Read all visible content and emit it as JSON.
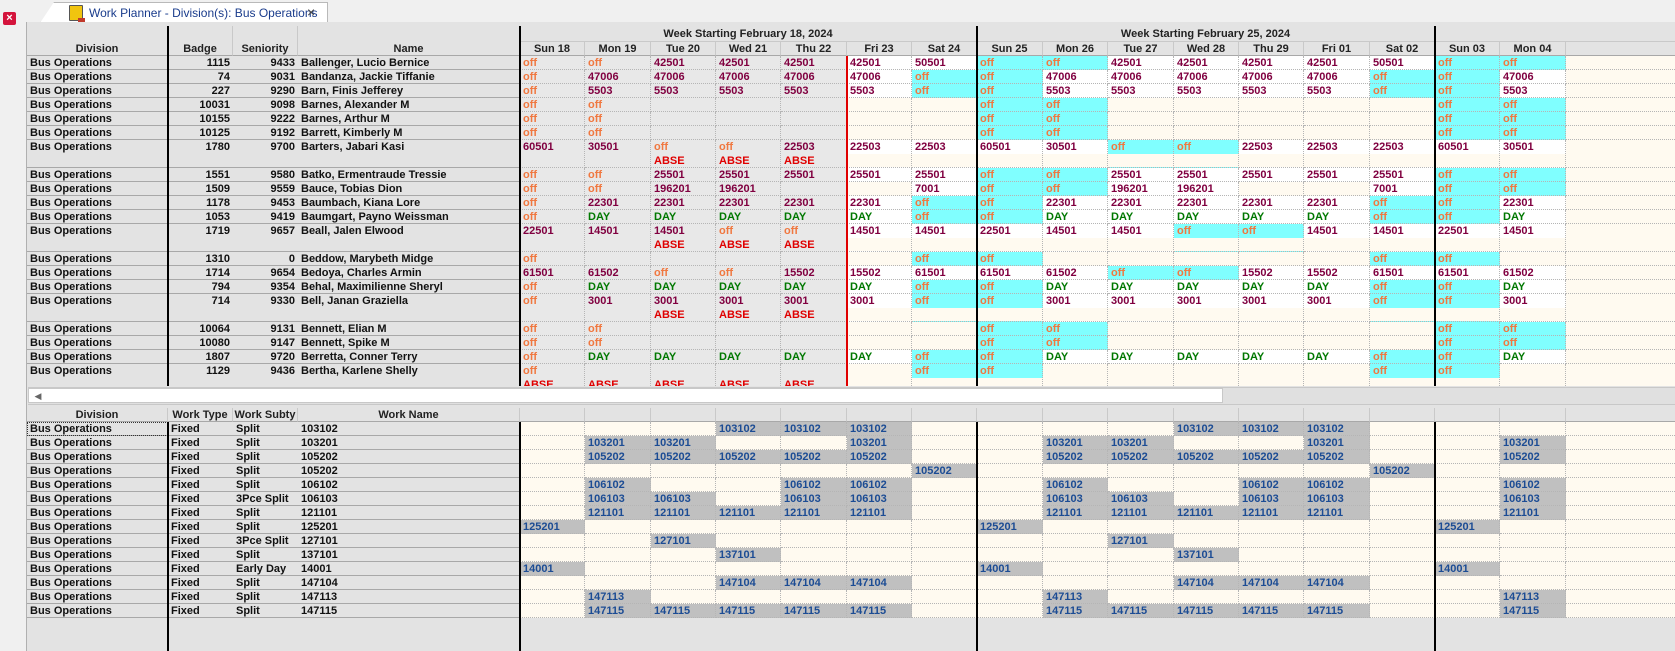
{
  "window": {
    "close_icon": "close-x-icon",
    "tab": {
      "icon": "planner-notebook-icon",
      "title": "Work Planner - Division(s): Bus Operations",
      "close_glyph": "×"
    }
  },
  "colors": {
    "off": "#f07840",
    "code": "#800040",
    "day": "#007800",
    "abse": "#e00000",
    "work_blue": "#1c4c94",
    "highlight_cyan": "#80ffff",
    "assigned_gray": "#c0c0c0",
    "today_line": "#e00000"
  },
  "top_grid": {
    "fixed_headers": [
      "Division",
      "Badge",
      "Seniority",
      "Name"
    ],
    "weeks": [
      {
        "label": "Week Starting February 18, 2024"
      },
      {
        "label": "Week Starting February 25, 2024"
      },
      {
        "label": ""
      }
    ],
    "days": [
      "Sun 18",
      "Mon 19",
      "Tue 20",
      "Wed 21",
      "Thu 22",
      "Fri 23",
      "Sat 24",
      "Sun 25",
      "Mon 26",
      "Tue 27",
      "Wed 28",
      "Thu 29",
      "Fri 01",
      "Sat 02",
      "Sun 03",
      "Mon 04"
    ],
    "rows": [
      {
        "division": "Bus Operations",
        "badge": "1115",
        "seniority": "9433",
        "name": "Ballenger, Lucio Bernice",
        "cells": [
          "off",
          "off",
          "42501",
          "42501",
          "42501",
          "42501",
          "50501",
          "off",
          "off",
          "42501",
          "42501",
          "42501",
          "42501",
          "50501",
          "off",
          "off"
        ],
        "abse": []
      },
      {
        "division": "Bus Operations",
        "badge": "74",
        "seniority": "9031",
        "name": "Bandanza, Jackie Tiffanie",
        "cells": [
          "off",
          "47006",
          "47006",
          "47006",
          "47006",
          "47006",
          "off",
          "off",
          "47006",
          "47006",
          "47006",
          "47006",
          "47006",
          "off",
          "off",
          "47006"
        ],
        "abse": []
      },
      {
        "division": "Bus Operations",
        "badge": "227",
        "seniority": "9290",
        "name": "Barn, Finis Jefferey",
        "cells": [
          "off",
          "5503",
          "5503",
          "5503",
          "5503",
          "5503",
          "off",
          "off",
          "5503",
          "5503",
          "5503",
          "5503",
          "5503",
          "off",
          "off",
          "5503"
        ],
        "abse": []
      },
      {
        "division": "Bus Operations",
        "badge": "10031",
        "seniority": "9098",
        "name": "Barnes, Alexander M",
        "cells": [
          "off",
          "off",
          "",
          "",
          "",
          "",
          "",
          "off",
          "off",
          "",
          "",
          "",
          "",
          "",
          "off",
          "off"
        ],
        "abse": []
      },
      {
        "division": "Bus Operations",
        "badge": "10155",
        "seniority": "9222",
        "name": "Barnes, Arthur M",
        "cells": [
          "off",
          "off",
          "",
          "",
          "",
          "",
          "",
          "off",
          "off",
          "",
          "",
          "",
          "",
          "",
          "off",
          "off"
        ],
        "abse": []
      },
      {
        "division": "Bus Operations",
        "badge": "10125",
        "seniority": "9192",
        "name": "Barrett, Kimberly M",
        "cells": [
          "off",
          "off",
          "",
          "",
          "",
          "",
          "",
          "off",
          "off",
          "",
          "",
          "",
          "",
          "",
          "off",
          "off"
        ],
        "abse": []
      },
      {
        "division": "Bus Operations",
        "badge": "1780",
        "seniority": "9700",
        "name": "Barters, Jabari Kasi",
        "cells": [
          "60501",
          "30501",
          "off",
          "off",
          "22503",
          "22503",
          "22503",
          "60501",
          "30501",
          "off",
          "off",
          "22503",
          "22503",
          "22503",
          "60501",
          "30501"
        ],
        "abse": [
          2,
          3,
          4
        ]
      },
      {
        "division": "Bus Operations",
        "badge": "1551",
        "seniority": "9580",
        "name": "Batko, Ermentraude Tressie",
        "cells": [
          "off",
          "off",
          "25501",
          "25501",
          "25501",
          "25501",
          "25501",
          "off",
          "off",
          "25501",
          "25501",
          "25501",
          "25501",
          "25501",
          "off",
          "off"
        ],
        "abse": []
      },
      {
        "division": "Bus Operations",
        "badge": "1509",
        "seniority": "9559",
        "name": "Bauce, Tobias Dion",
        "cells": [
          "off",
          "off",
          "196201",
          "196201",
          "",
          "",
          "7001",
          "off",
          "off",
          "196201",
          "196201",
          "",
          "",
          "7001",
          "off",
          "off"
        ],
        "abse": []
      },
      {
        "division": "Bus Operations",
        "badge": "1178",
        "seniority": "9453",
        "name": "Baumbach, Kiana Lore",
        "cells": [
          "off",
          "22301",
          "22301",
          "22301",
          "22301",
          "22301",
          "off",
          "off",
          "22301",
          "22301",
          "22301",
          "22301",
          "22301",
          "off",
          "off",
          "22301"
        ],
        "abse": []
      },
      {
        "division": "Bus Operations",
        "badge": "1053",
        "seniority": "9419",
        "name": "Baumgart, Payno Weissman",
        "cells": [
          "off",
          "DAY",
          "DAY",
          "DAY",
          "DAY",
          "DAY",
          "off",
          "off",
          "DAY",
          "DAY",
          "DAY",
          "DAY",
          "DAY",
          "off",
          "off",
          "DAY"
        ],
        "abse": []
      },
      {
        "division": "Bus Operations",
        "badge": "1719",
        "seniority": "9657",
        "name": "Beall, Jalen Elwood",
        "cells": [
          "22501",
          "14501",
          "14501",
          "off",
          "off",
          "14501",
          "14501",
          "22501",
          "14501",
          "14501",
          "off",
          "off",
          "14501",
          "14501",
          "22501",
          "14501"
        ],
        "abse": [
          2,
          3,
          4
        ]
      },
      {
        "division": "Bus Operations",
        "badge": "1310",
        "seniority": "0",
        "name": "Beddow, Marybeth Midge",
        "cells": [
          "off",
          "",
          "",
          "",
          "",
          "",
          "off",
          "off",
          "",
          "",
          "",
          "",
          "",
          "off",
          "off",
          ""
        ],
        "abse": []
      },
      {
        "division": "Bus Operations",
        "badge": "1714",
        "seniority": "9654",
        "name": "Bedoya, Charles Armin",
        "cells": [
          "61501",
          "61502",
          "off",
          "off",
          "15502",
          "15502",
          "61501",
          "61501",
          "61502",
          "off",
          "off",
          "15502",
          "15502",
          "61501",
          "61501",
          "61502"
        ],
        "abse": []
      },
      {
        "division": "Bus Operations",
        "badge": "794",
        "seniority": "9354",
        "name": "Behal, Maximilienne Sheryl",
        "cells": [
          "off",
          "DAY",
          "DAY",
          "DAY",
          "DAY",
          "DAY",
          "off",
          "off",
          "DAY",
          "DAY",
          "DAY",
          "DAY",
          "DAY",
          "off",
          "off",
          "DAY"
        ],
        "abse": []
      },
      {
        "division": "Bus Operations",
        "badge": "714",
        "seniority": "9330",
        "name": "Bell, Janan Graziella",
        "cells": [
          "off",
          "3001",
          "3001",
          "3001",
          "3001",
          "3001",
          "off",
          "off",
          "3001",
          "3001",
          "3001",
          "3001",
          "3001",
          "off",
          "off",
          "3001"
        ],
        "abse": [
          2,
          3,
          4
        ]
      },
      {
        "division": "Bus Operations",
        "badge": "10064",
        "seniority": "9131",
        "name": "Bennett, Elian M",
        "cells": [
          "off",
          "off",
          "",
          "",
          "",
          "",
          "",
          "off",
          "off",
          "",
          "",
          "",
          "",
          "",
          "off",
          "off"
        ],
        "abse": []
      },
      {
        "division": "Bus Operations",
        "badge": "10080",
        "seniority": "9147",
        "name": "Bennett, Spike M",
        "cells": [
          "off",
          "off",
          "",
          "",
          "",
          "",
          "",
          "off",
          "off",
          "",
          "",
          "",
          "",
          "",
          "off",
          "off"
        ],
        "abse": []
      },
      {
        "division": "Bus Operations",
        "badge": "1807",
        "seniority": "9720",
        "name": "Berretta, Conner Terry",
        "cells": [
          "off",
          "DAY",
          "DAY",
          "DAY",
          "DAY",
          "DAY",
          "off",
          "off",
          "DAY",
          "DAY",
          "DAY",
          "DAY",
          "DAY",
          "off",
          "off",
          "DAY"
        ],
        "abse": []
      },
      {
        "division": "Bus Operations",
        "badge": "1129",
        "seniority": "9436",
        "name": "Bertha, Karlene Shelly",
        "cells": [
          "off",
          "",
          "",
          "",
          "",
          "",
          "off",
          "off",
          "",
          "",
          "",
          "",
          "",
          "off",
          "off",
          ""
        ],
        "abse": [
          0,
          1,
          2,
          3,
          4
        ]
      }
    ],
    "abse_label": "ABSE"
  },
  "scrollbar": {
    "left_arrow": "◀"
  },
  "bottom_grid": {
    "fixed_headers": [
      "Division",
      "Work Type",
      "Work Subty",
      "Work Name"
    ],
    "rows": [
      {
        "division": "Bus Operations",
        "type": "Fixed",
        "subtype": "Split",
        "name": "103102",
        "days": [
          0,
          0,
          0,
          1,
          1,
          1,
          0,
          0,
          0,
          0,
          1,
          1,
          1,
          0,
          0,
          0
        ]
      },
      {
        "division": "Bus Operations",
        "type": "Fixed",
        "subtype": "Split",
        "name": "103201",
        "days": [
          0,
          1,
          1,
          0,
          0,
          1,
          0,
          0,
          1,
          1,
          0,
          0,
          1,
          0,
          0,
          1
        ]
      },
      {
        "division": "Bus Operations",
        "type": "Fixed",
        "subtype": "Split",
        "name": "105202",
        "days": [
          0,
          1,
          1,
          1,
          1,
          1,
          0,
          0,
          1,
          1,
          1,
          1,
          1,
          0,
          0,
          1
        ]
      },
      {
        "division": "Bus Operations",
        "type": "Fixed",
        "subtype": "Split",
        "name": "105202",
        "days": [
          0,
          0,
          0,
          0,
          0,
          0,
          1,
          0,
          0,
          0,
          0,
          0,
          0,
          1,
          0,
          0
        ]
      },
      {
        "division": "Bus Operations",
        "type": "Fixed",
        "subtype": "Split",
        "name": "106102",
        "days": [
          0,
          1,
          0,
          0,
          1,
          1,
          0,
          0,
          1,
          0,
          0,
          1,
          1,
          0,
          0,
          1
        ]
      },
      {
        "division": "Bus Operations",
        "type": "Fixed",
        "subtype": "3Pce Split",
        "name": "106103",
        "days": [
          0,
          1,
          1,
          0,
          1,
          1,
          0,
          0,
          1,
          1,
          0,
          1,
          1,
          0,
          0,
          1
        ]
      },
      {
        "division": "Bus Operations",
        "type": "Fixed",
        "subtype": "Split",
        "name": "121101",
        "days": [
          0,
          1,
          1,
          1,
          1,
          1,
          0,
          0,
          1,
          1,
          1,
          1,
          1,
          0,
          0,
          1
        ]
      },
      {
        "division": "Bus Operations",
        "type": "Fixed",
        "subtype": "Split",
        "name": "125201",
        "days": [
          1,
          0,
          0,
          0,
          0,
          0,
          0,
          1,
          0,
          0,
          0,
          0,
          0,
          0,
          1,
          0
        ]
      },
      {
        "division": "Bus Operations",
        "type": "Fixed",
        "subtype": "3Pce Split",
        "name": "127101",
        "days": [
          0,
          0,
          1,
          0,
          0,
          0,
          0,
          0,
          0,
          1,
          0,
          0,
          0,
          0,
          0,
          0
        ]
      },
      {
        "division": "Bus Operations",
        "type": "Fixed",
        "subtype": "Split",
        "name": "137101",
        "days": [
          0,
          0,
          0,
          1,
          0,
          0,
          0,
          0,
          0,
          0,
          1,
          0,
          0,
          0,
          0,
          0
        ]
      },
      {
        "division": "Bus Operations",
        "type": "Fixed",
        "subtype": "Early Day",
        "name": "14001",
        "days": [
          1,
          0,
          0,
          0,
          0,
          0,
          0,
          1,
          0,
          0,
          0,
          0,
          0,
          0,
          1,
          0
        ]
      },
      {
        "division": "Bus Operations",
        "type": "Fixed",
        "subtype": "Split",
        "name": "147104",
        "days": [
          0,
          0,
          0,
          1,
          1,
          1,
          0,
          0,
          0,
          0,
          1,
          1,
          1,
          0,
          0,
          0
        ]
      },
      {
        "division": "Bus Operations",
        "type": "Fixed",
        "subtype": "Split",
        "name": "147113",
        "days": [
          0,
          1,
          0,
          0,
          0,
          0,
          0,
          0,
          1,
          0,
          0,
          0,
          0,
          0,
          0,
          1
        ]
      },
      {
        "division": "Bus Operations",
        "type": "Fixed",
        "subtype": "Split",
        "name": "147115",
        "days": [
          0,
          1,
          1,
          1,
          1,
          1,
          0,
          0,
          1,
          1,
          1,
          1,
          1,
          0,
          0,
          1
        ]
      }
    ]
  }
}
